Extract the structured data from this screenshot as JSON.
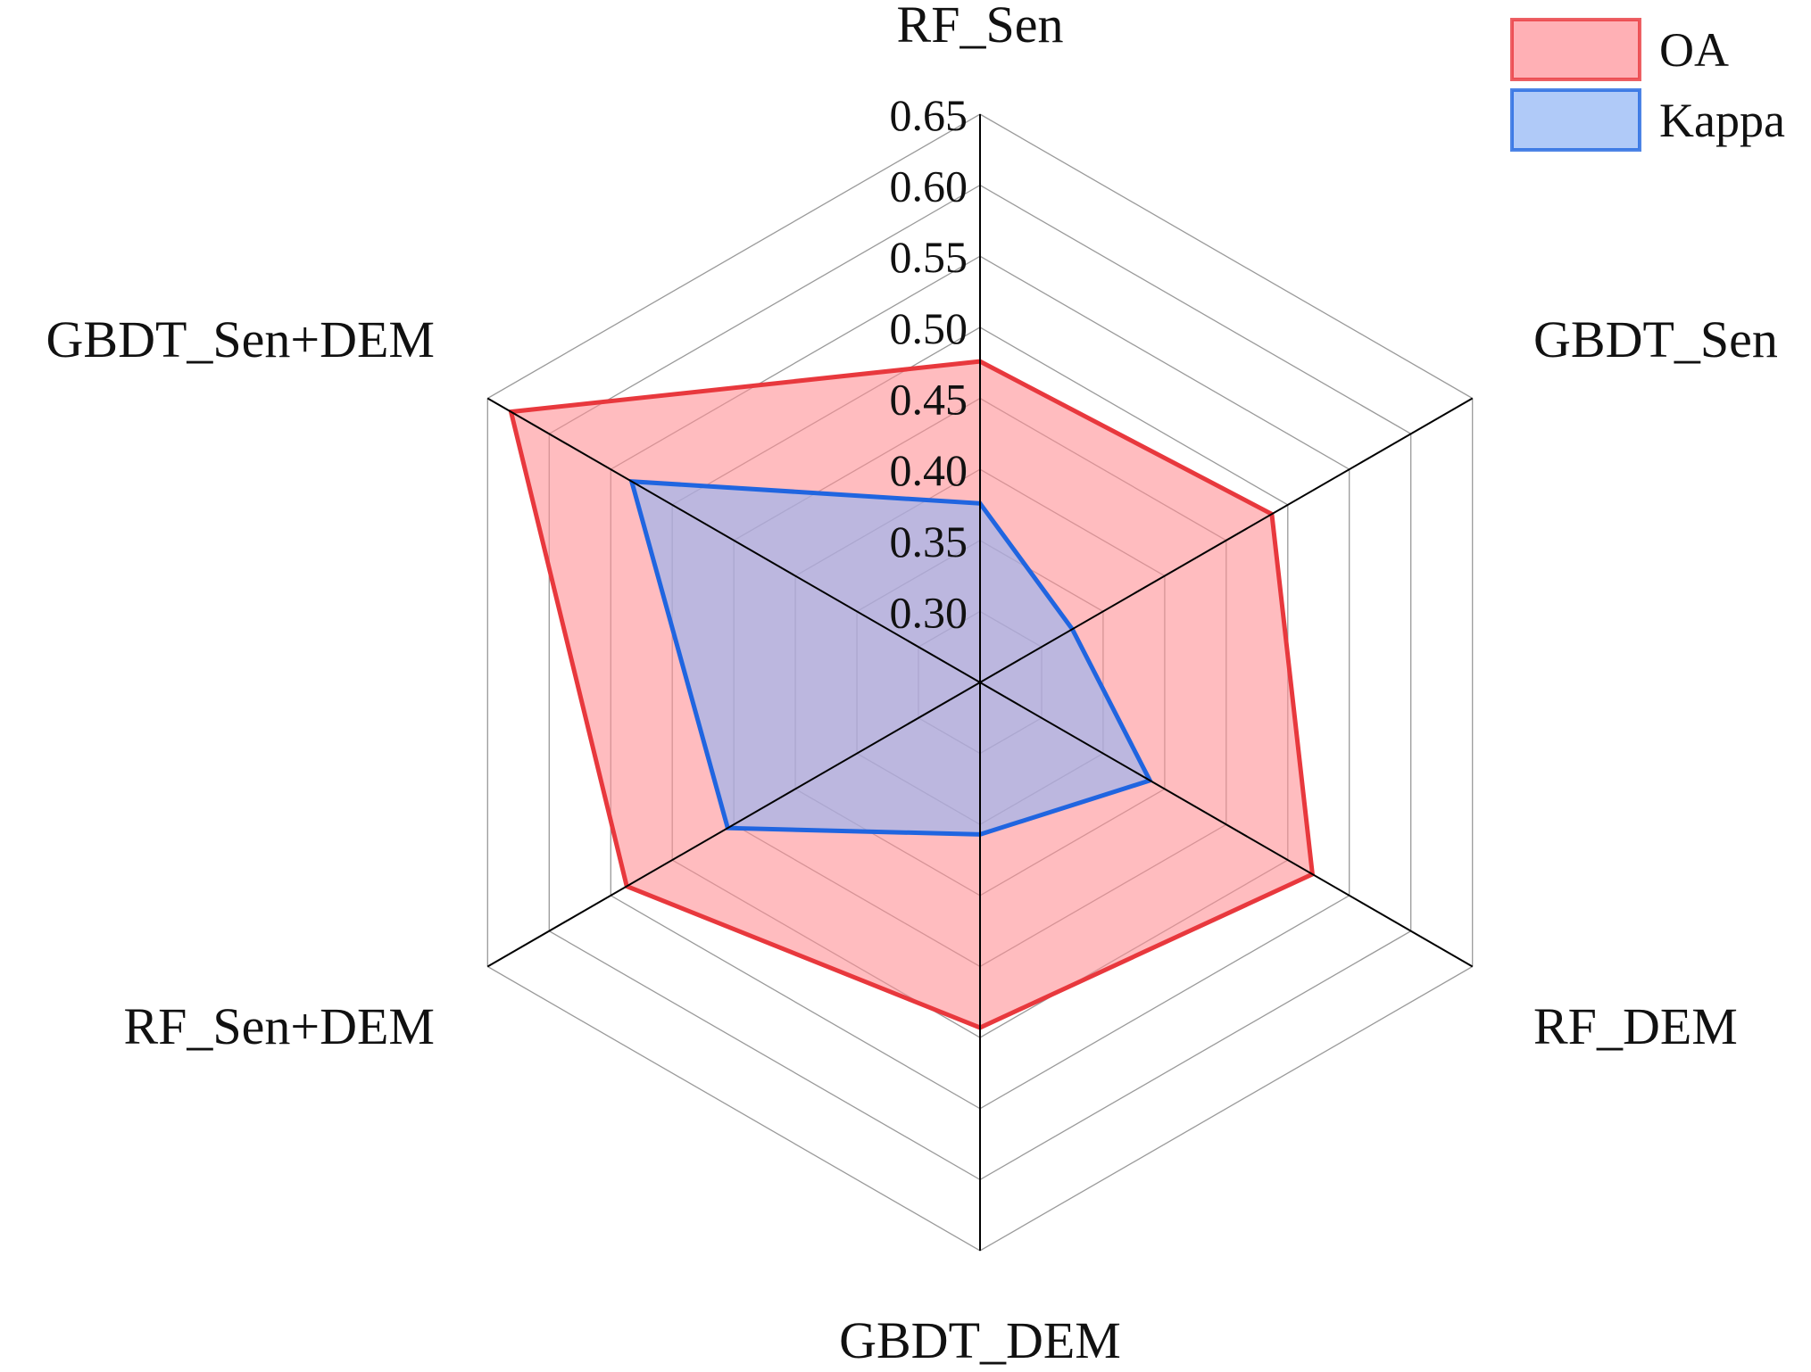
{
  "chart_data": {
    "type": "radar",
    "categories": [
      "RF_Sen",
      "GBDT_Sen",
      "RF_DEM",
      "GBDT_DEM",
      "RF_Sen+DEM",
      "GBDT_Sen+DEM"
    ],
    "series": [
      {
        "name": "OA",
        "values": [
          0.476,
          0.487,
          0.52,
          0.493,
          0.537,
          0.631
        ],
        "color": "#e8383d",
        "fill": "#ff8f95"
      },
      {
        "name": "Kappa",
        "values": [
          0.376,
          0.325,
          0.388,
          0.357,
          0.455,
          0.533
        ],
        "color": "#2065e0",
        "fill": "#8fb4f5"
      }
    ],
    "ticks": [
      "0.30",
      "0.35",
      "0.40",
      "0.45",
      "0.50",
      "0.55",
      "0.60",
      "0.65"
    ],
    "range": [
      0.25,
      0.65
    ],
    "legend_position": "top-right",
    "grid": true
  }
}
